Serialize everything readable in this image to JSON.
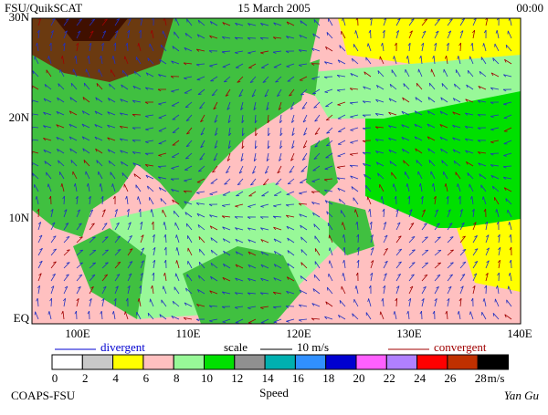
{
  "header": {
    "left": "FSU/QuikSCAT",
    "center": "15 March 2005",
    "right": "00:00"
  },
  "map": {
    "lat_labels": [
      "30N",
      "20N",
      "10N",
      "EQ"
    ],
    "lon_labels": [
      "100E",
      "110E",
      "120E",
      "130E",
      "140E"
    ]
  },
  "legend": {
    "divergent": "divergent",
    "scale": "scale",
    "scale_value": "10 m/s",
    "convergent": "convergent"
  },
  "colorbar": {
    "levels": [
      0,
      2,
      4,
      6,
      8,
      10,
      12,
      14,
      16,
      18,
      20,
      22,
      24,
      26,
      28
    ],
    "unit": "m/s",
    "title": "Speed",
    "colors": [
      "#ffffff",
      "#c8c8c8",
      "#ffff00",
      "#ffc0c0",
      "#98f898",
      "#00e000",
      "#909090",
      "#00b0b0",
      "#3090ff",
      "#0000d0",
      "#ff60ff",
      "#b080ff",
      "#ff0000",
      "#c03000",
      "#000000"
    ]
  },
  "footer": {
    "left": "COAPS-FSU",
    "right": "Yan Gu"
  }
}
